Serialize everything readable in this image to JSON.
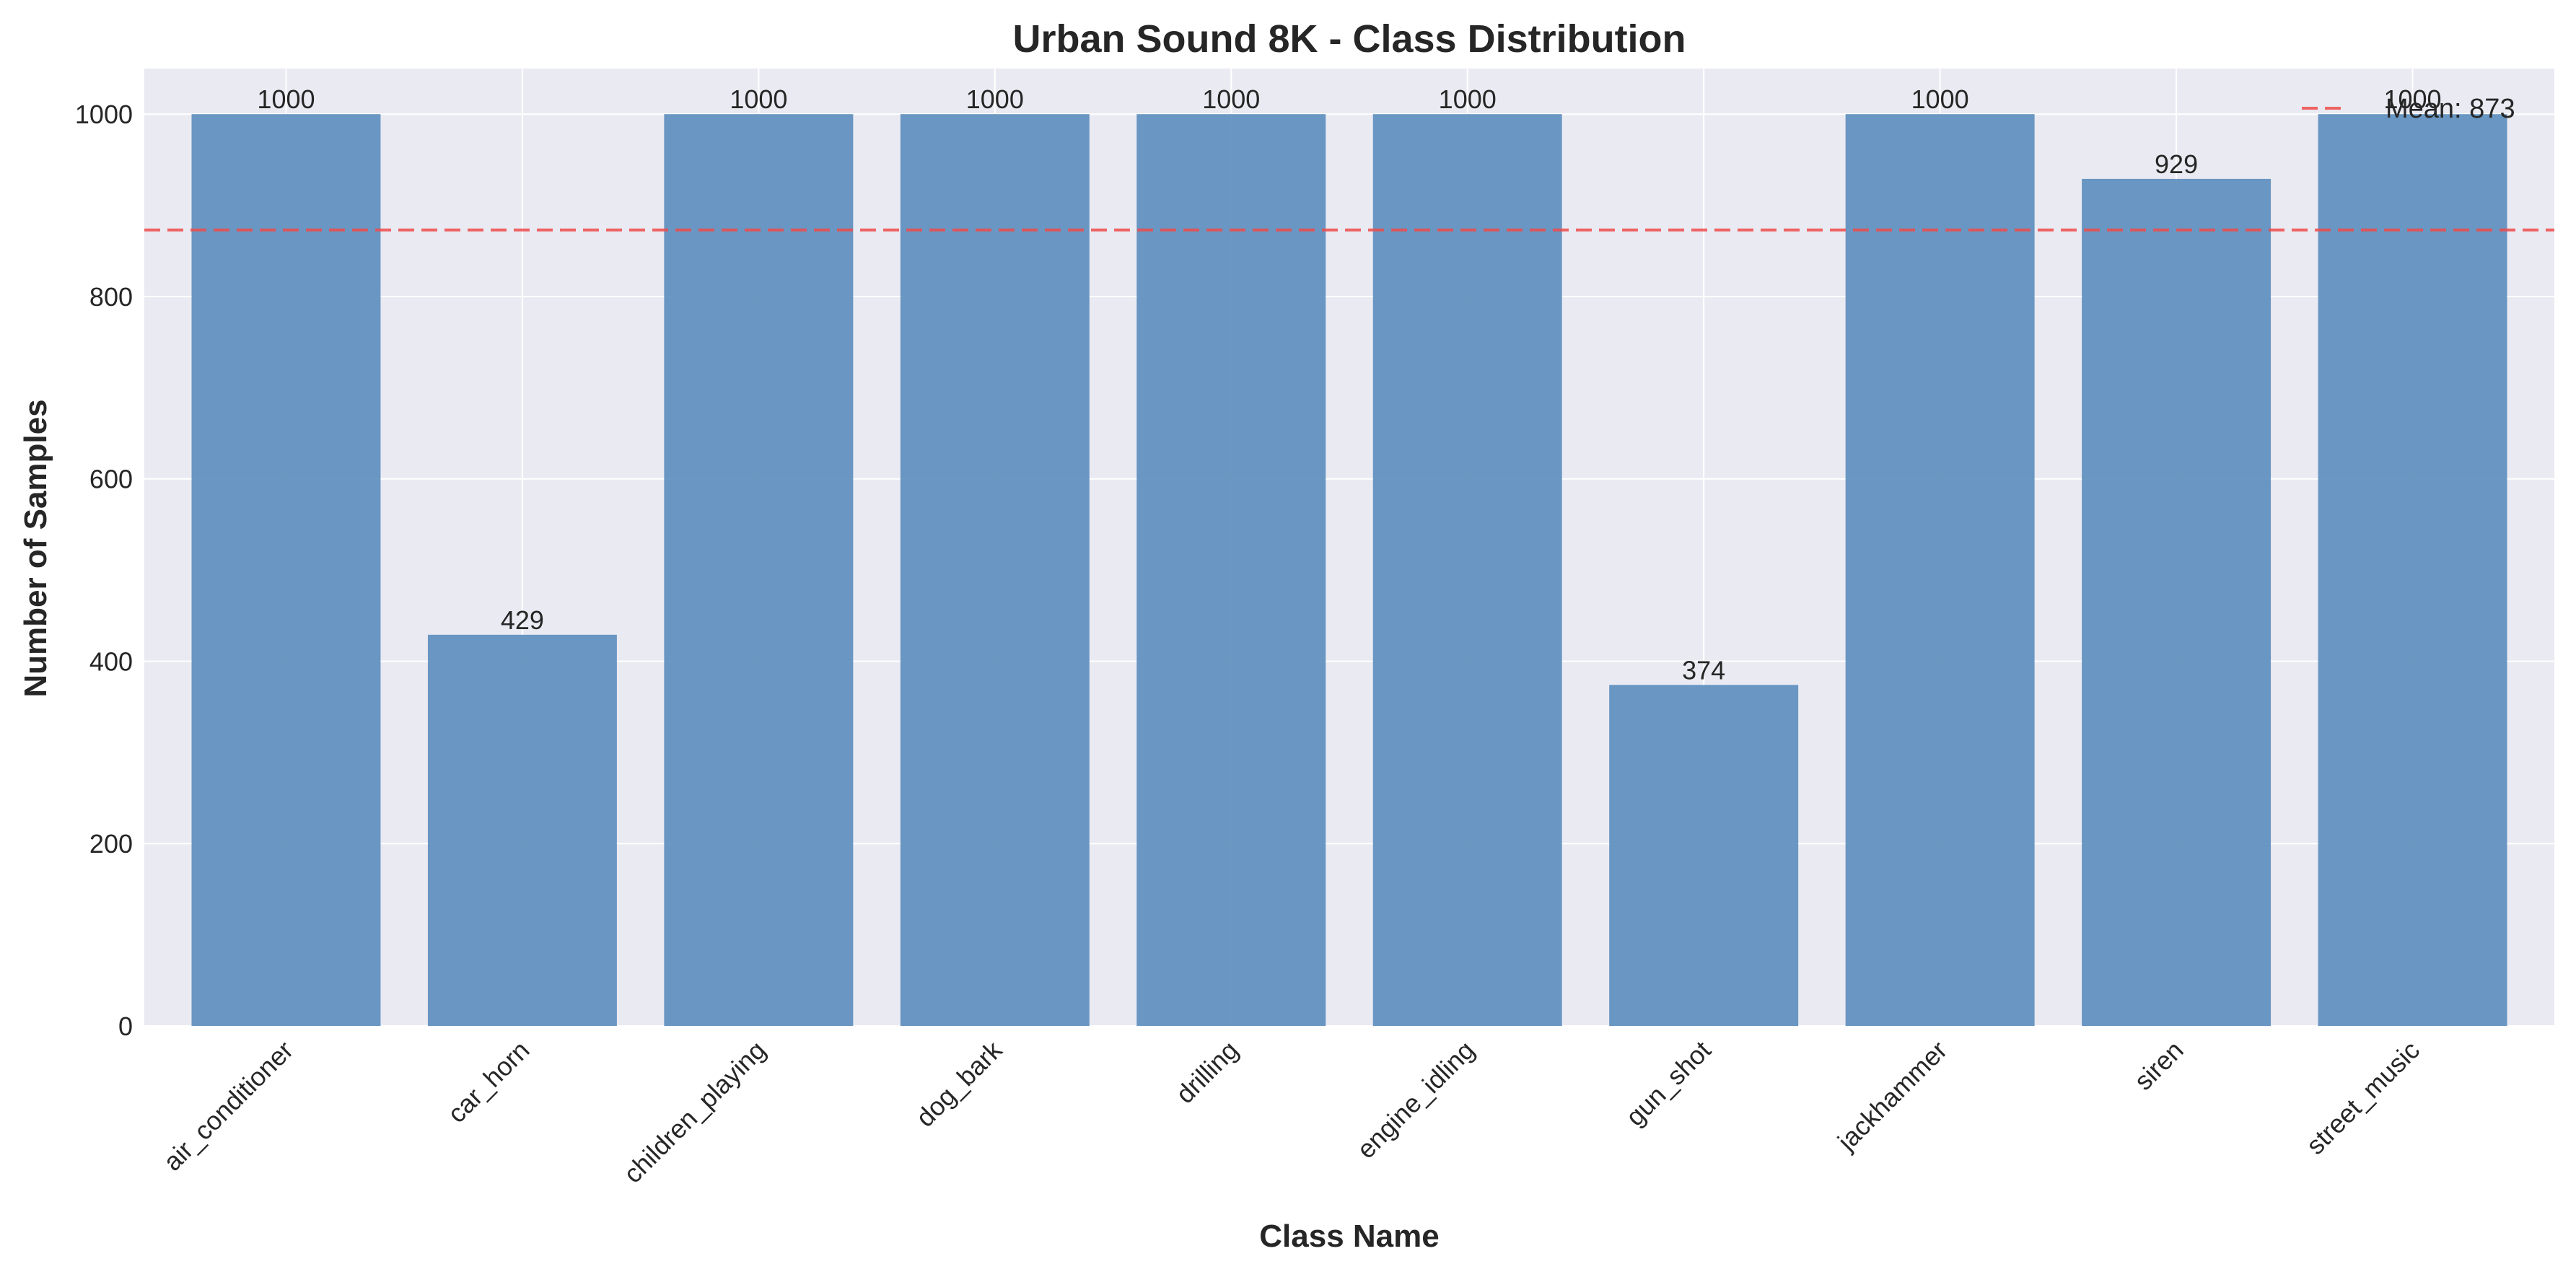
{
  "chart_data": {
    "type": "bar",
    "title": "Urban Sound 8K - Class Distribution",
    "xlabel": "Class Name",
    "ylabel": "Number of Samples",
    "categories": [
      "air_conditioner",
      "car_horn",
      "children_playing",
      "dog_bark",
      "drilling",
      "engine_idling",
      "gun_shot",
      "jackhammer",
      "siren",
      "street_music"
    ],
    "values": [
      1000,
      429,
      1000,
      1000,
      1000,
      1000,
      374,
      1000,
      929,
      1000
    ],
    "data_labels": [
      "1000",
      "429",
      "1000",
      "1000",
      "1000",
      "1000",
      "374",
      "1000",
      "929",
      "1000"
    ],
    "ylim": [
      0,
      1050
    ],
    "yticks": [
      0,
      200,
      400,
      600,
      800,
      1000
    ],
    "grid": true,
    "reference_line": {
      "label": "Mean: 873",
      "value": 873,
      "color": "#ef4b4b",
      "style": "dashed"
    },
    "legend": {
      "position": "top-right",
      "entries": [
        "Mean: 873"
      ]
    },
    "colors": {
      "bar": "#5b8dbd",
      "background": "#eaeaf2",
      "grid": "#ffffff",
      "text": "#262626"
    }
  }
}
